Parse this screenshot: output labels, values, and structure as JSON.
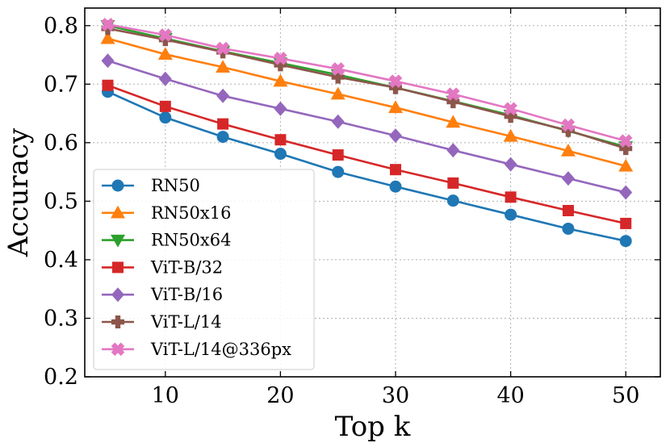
{
  "chart_data": {
    "type": "line",
    "title": "",
    "xlabel": "Top k",
    "ylabel": "Accuracy",
    "x": [
      5,
      10,
      15,
      20,
      25,
      30,
      35,
      40,
      45,
      50
    ],
    "xlim": [
      3,
      53
    ],
    "ylim": [
      0.2,
      0.83
    ],
    "xticks": [
      10,
      20,
      30,
      40,
      50
    ],
    "xtick_labels": [
      "10",
      "20",
      "30",
      "40",
      "50"
    ],
    "yticks": [
      0.2,
      0.3,
      0.4,
      0.5,
      0.6,
      0.7,
      0.8
    ],
    "ytick_labels": [
      "0.2",
      "0.3",
      "0.4",
      "0.5",
      "0.6",
      "0.7",
      "0.8"
    ],
    "grid": true,
    "legend_position": "lower-left",
    "series": [
      {
        "name": "RN50",
        "color": "#1f77b4",
        "marker": "circle",
        "values": [
          0.687,
          0.643,
          0.61,
          0.581,
          0.55,
          0.525,
          0.501,
          0.477,
          0.453,
          0.432
        ]
      },
      {
        "name": "RN50x16",
        "color": "#ff7f0e",
        "marker": "triangle-up",
        "values": [
          0.778,
          0.751,
          0.729,
          0.705,
          0.683,
          0.66,
          0.635,
          0.611,
          0.586,
          0.56
        ]
      },
      {
        "name": "RN50x64",
        "color": "#2ca02c",
        "marker": "triangle-down",
        "values": [
          0.8,
          0.778,
          0.756,
          0.736,
          0.716,
          0.694,
          0.671,
          0.647,
          0.62,
          0.593
        ]
      },
      {
        "name": "ViT-B/32",
        "color": "#d62728",
        "marker": "square",
        "values": [
          0.698,
          0.662,
          0.632,
          0.605,
          0.579,
          0.554,
          0.531,
          0.507,
          0.484,
          0.462
        ]
      },
      {
        "name": "ViT-B/16",
        "color": "#9467bd",
        "marker": "diamond",
        "values": [
          0.74,
          0.709,
          0.68,
          0.658,
          0.636,
          0.612,
          0.587,
          0.563,
          0.539,
          0.515
        ]
      },
      {
        "name": "ViT-L/14",
        "color": "#8c564b",
        "marker": "plus",
        "values": [
          0.795,
          0.776,
          0.755,
          0.733,
          0.712,
          0.694,
          0.67,
          0.645,
          0.621,
          0.59
        ]
      },
      {
        "name": "ViT-L/14@336px",
        "color": "#e377c2",
        "marker": "x",
        "values": [
          0.802,
          0.784,
          0.761,
          0.744,
          0.726,
          0.705,
          0.683,
          0.658,
          0.63,
          0.603
        ]
      }
    ]
  }
}
